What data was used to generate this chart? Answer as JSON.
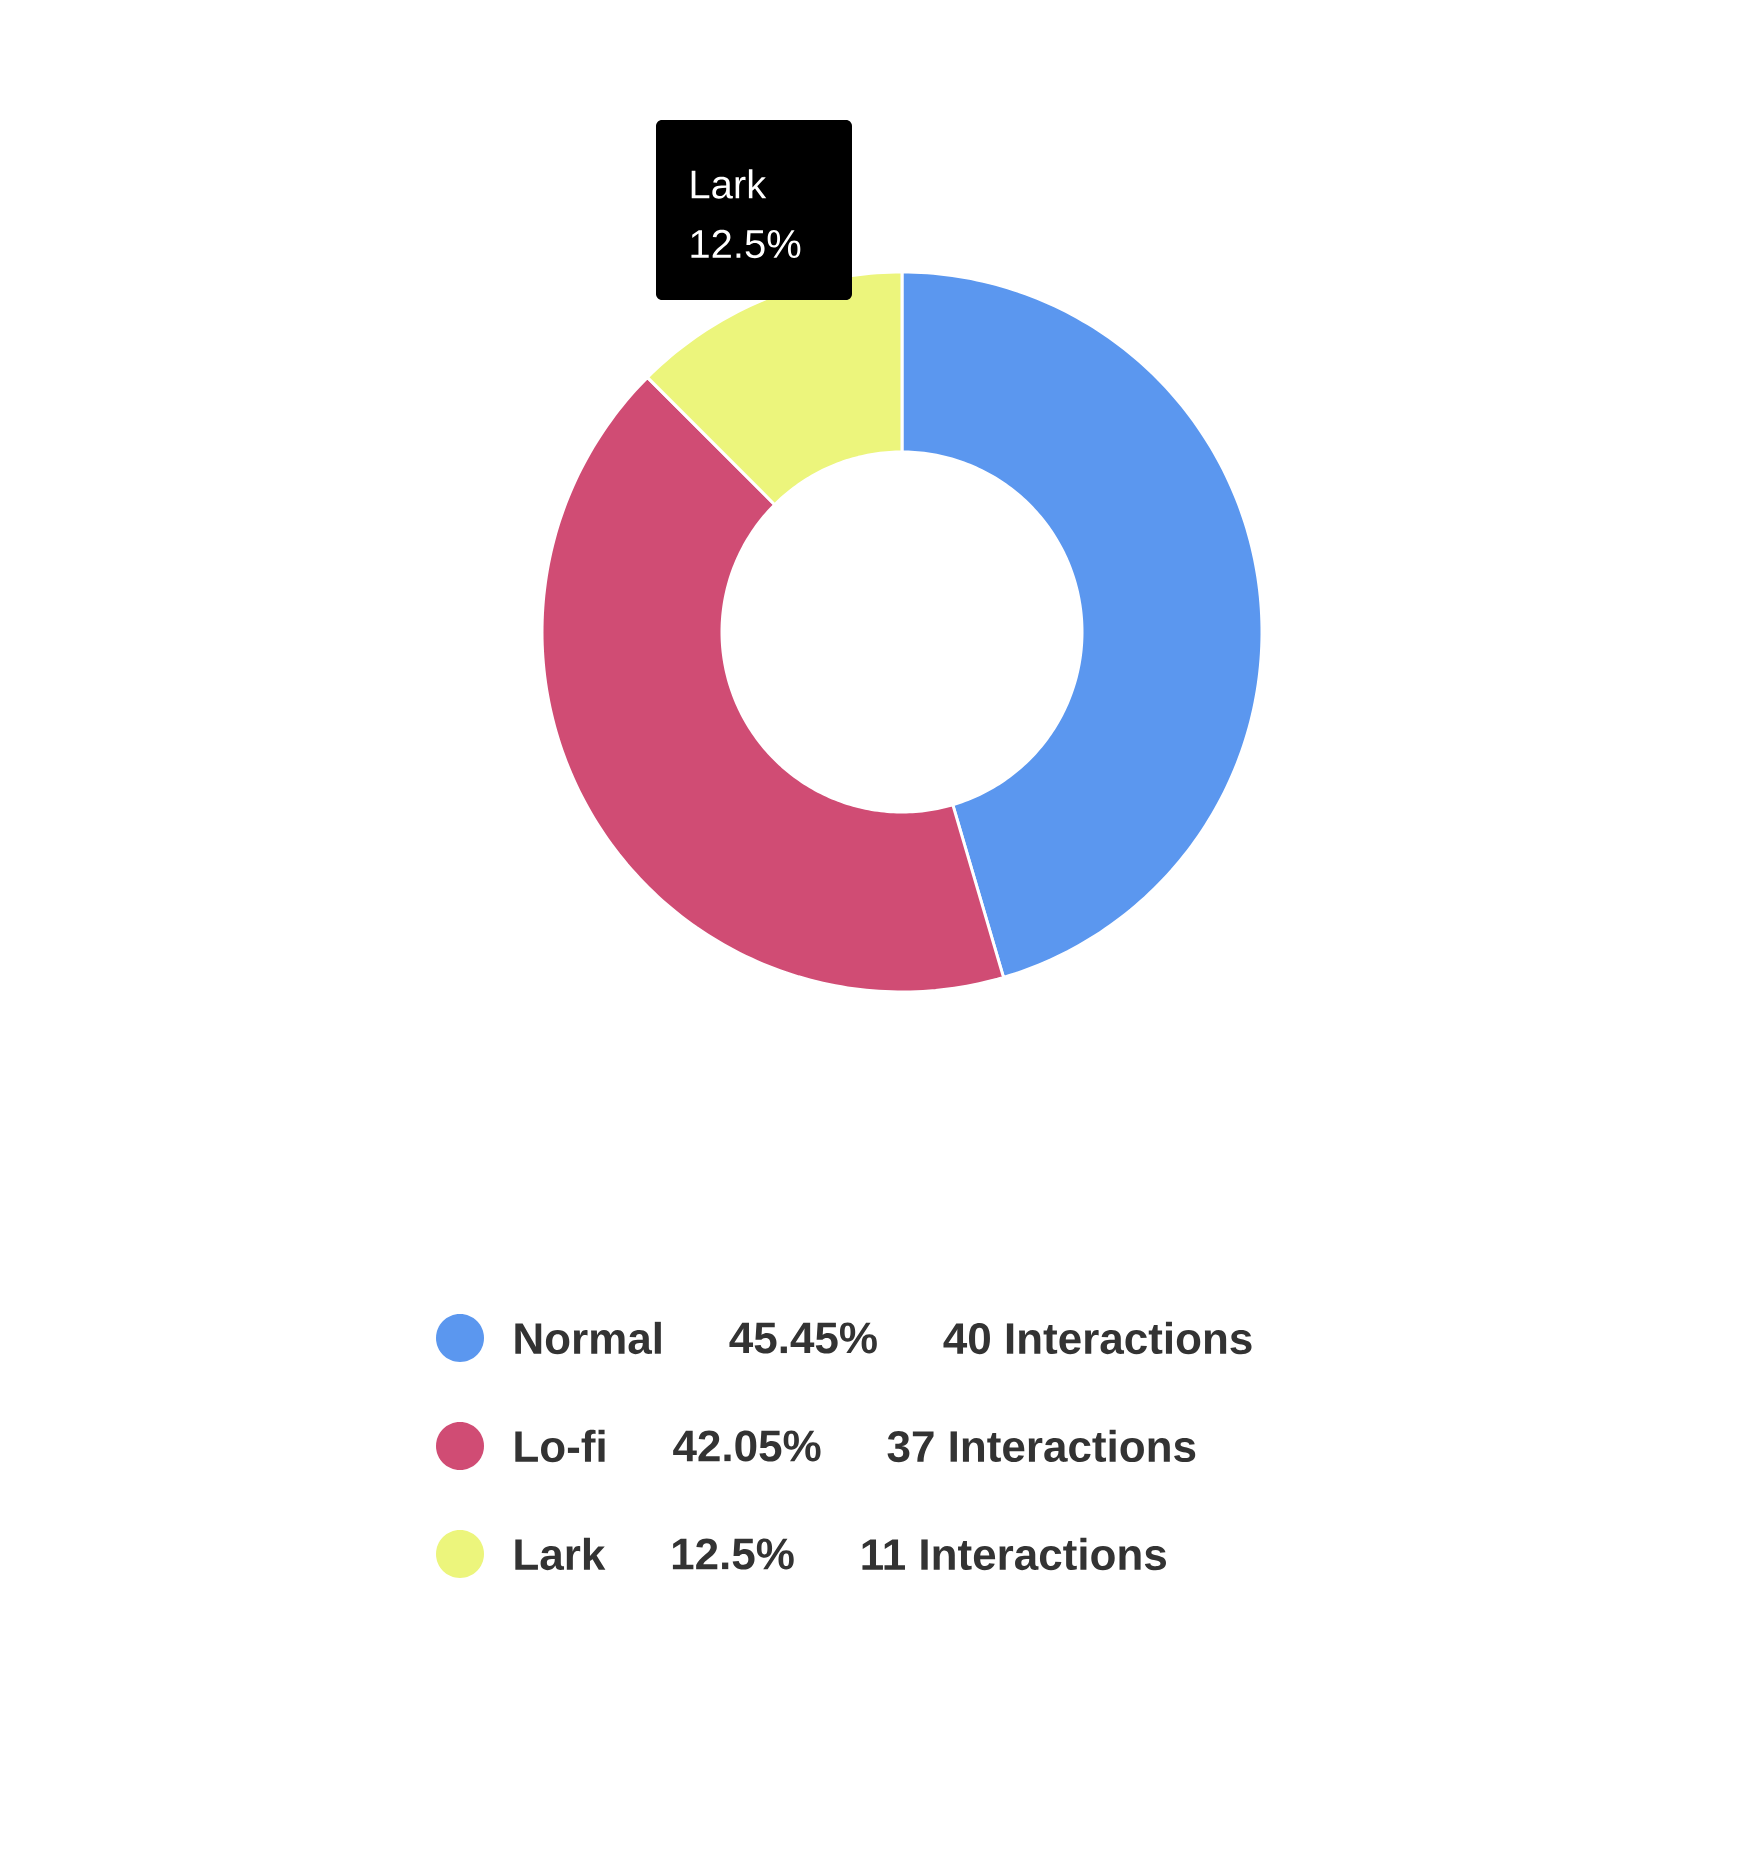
{
  "chart_data": {
    "type": "donut",
    "categories": [
      "Normal",
      "Lo-fi",
      "Lark"
    ],
    "values": [
      45.45,
      42.05,
      12.5
    ],
    "colors": [
      "#5b97ef",
      "#d04c74",
      "#ecf57c"
    ],
    "value_labels": [
      "45.45%",
      "42.05%",
      "12.5%"
    ],
    "legend": "bottom",
    "annotations": [
      "40 Interactions",
      "37 Interactions",
      "11 Interactions",
      "Lark",
      "12.5%"
    ]
  }
}
